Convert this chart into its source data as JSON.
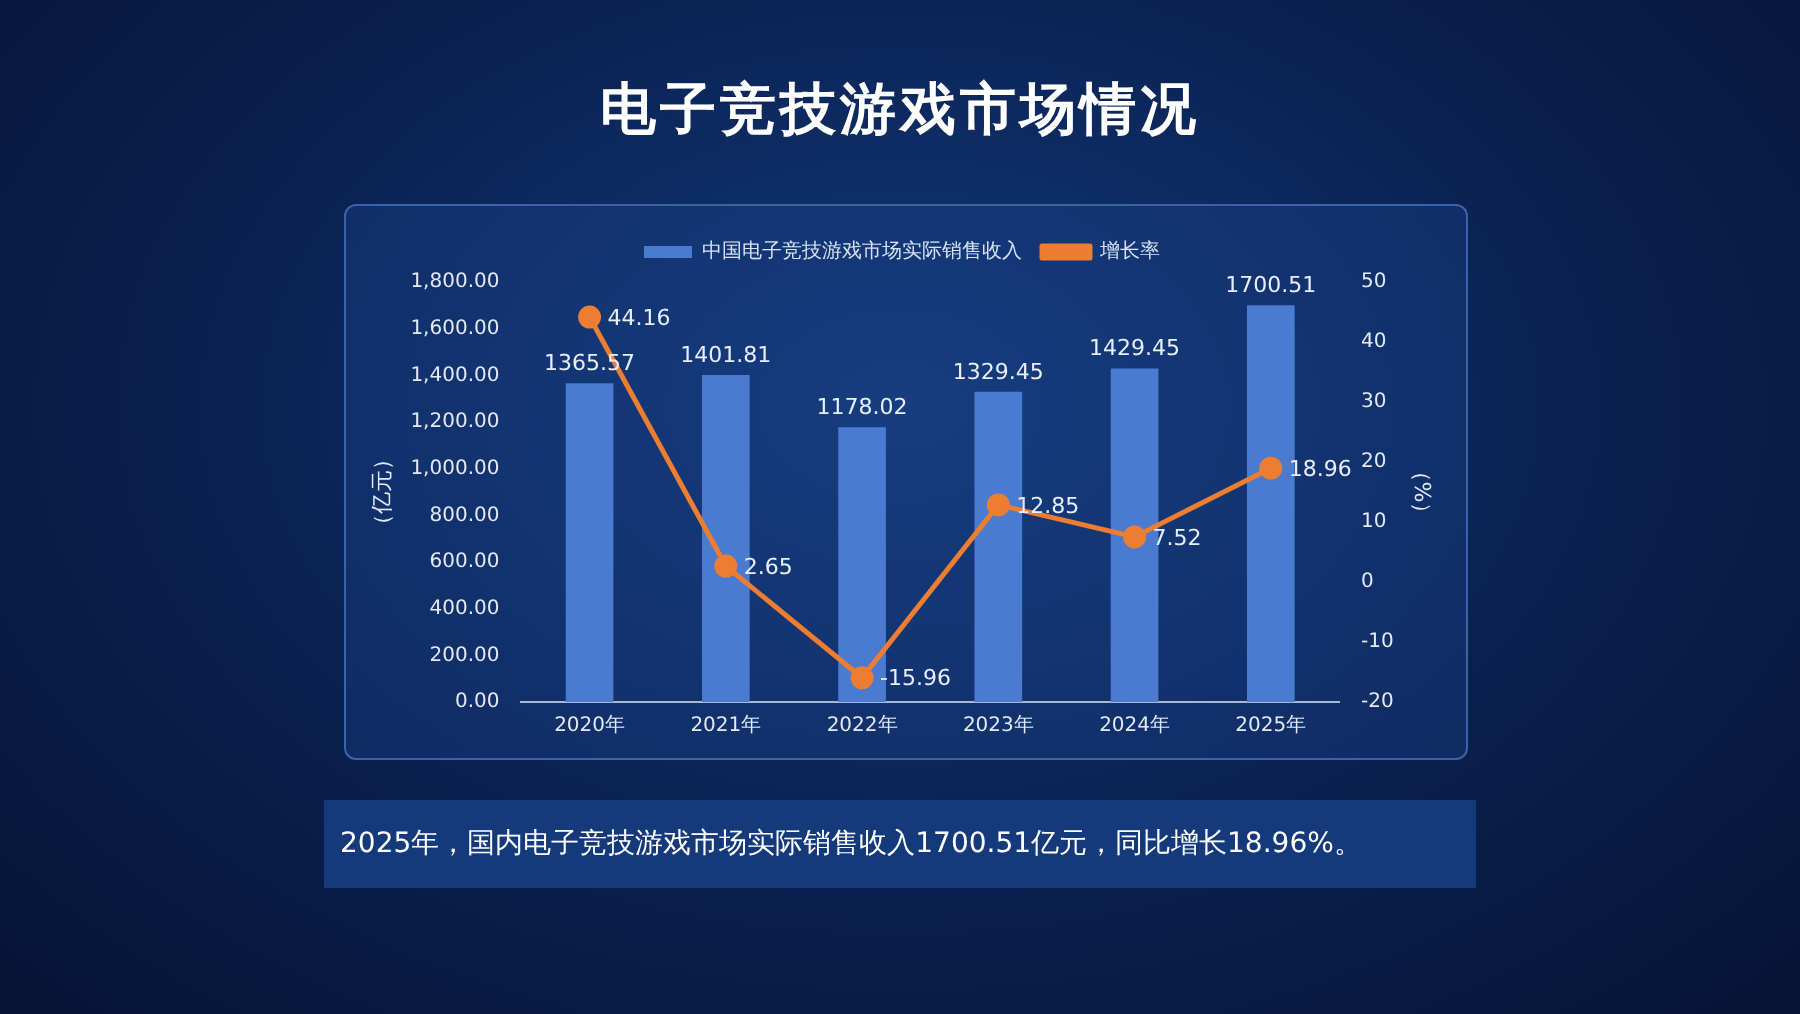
{
  "chart_data": {
    "type": "bar",
    "title": "电子竞技游戏市场情况",
    "categories": [
      "2020年",
      "2021年",
      "2022年",
      "2023年",
      "2024年",
      "2025年"
    ],
    "series": [
      {
        "name": "中国电子竞技游戏市场实际销售收入",
        "color": "#4a7bd0",
        "values": [
          1365.57,
          1401.81,
          1178.02,
          1329.45,
          1429.45,
          1700.51
        ]
      },
      {
        "name": "增长率",
        "type": "line",
        "axis": "y2",
        "color": "#ed7d31",
        "values": [
          44.16,
          2.65,
          -15.96,
          12.85,
          7.52,
          18.96
        ]
      }
    ],
    "ylabel": "（亿元）",
    "y2label": "（%）",
    "ylim": [
      0,
      1800
    ],
    "yticks": [
      {
        "value": 0,
        "label": "0.00"
      },
      {
        "value": 200,
        "label": "200.00"
      },
      {
        "value": 400,
        "label": "400.00"
      },
      {
        "value": 600,
        "label": "600.00"
      },
      {
        "value": 800,
        "label": "800.00"
      },
      {
        "value": 1000,
        "label": "1,000.00"
      },
      {
        "value": 1200,
        "label": "1,200.00"
      },
      {
        "value": 1400,
        "label": "1,400.00"
      },
      {
        "value": 1600,
        "label": "1,600.00"
      },
      {
        "value": 1800,
        "label": "1,800.00"
      }
    ],
    "y2lim": [
      -20,
      50
    ],
    "y2ticks": [
      -20,
      -10,
      0,
      10,
      20,
      30,
      40,
      50
    ],
    "data_labels": true,
    "legend": "top",
    "marker": "circle",
    "annotations": [
      "2025年，国内电子竞技游戏市场实际销售收入1700.51亿元，同比增长18.96%。"
    ]
  }
}
